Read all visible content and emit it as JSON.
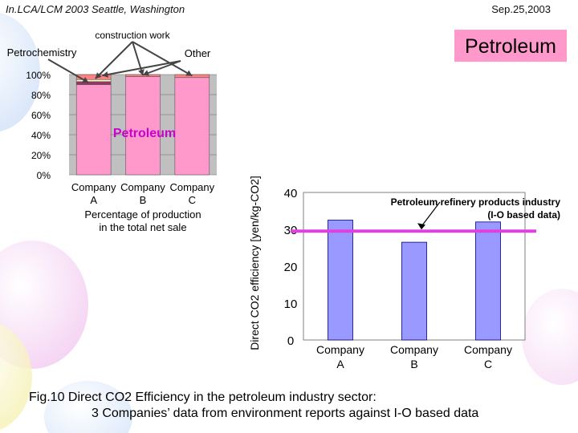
{
  "header": {
    "left": "In.LCA/LCM 2003   Seattle, Washington",
    "right": "Sep.25,2003"
  },
  "colors": {
    "petroleum_pink": "#ff99cc",
    "bar_blue": "#9999ff",
    "io_line_magenta": "#e040e0",
    "petroleum_label": "#cc00cc",
    "petrochemistry": "#993366",
    "construction": "#ffffcc",
    "other": "#ff8080",
    "plot_bg": "#c0c0c0"
  },
  "caption": {
    "line1": "Fig.10 Direct CO2 Efficiency in the petroleum industry sector:",
    "line2": "3 Companies’ data from environment reports against I-O based data"
  },
  "chart_data": [
    {
      "type": "bar",
      "stacked": true,
      "percent": true,
      "title_badge": "Petroleum",
      "inner_label": "Petroleum",
      "categories": [
        "Company A",
        "Company B",
        "Company C"
      ],
      "category_lines": [
        [
          "Company",
          "A"
        ],
        [
          "Company",
          "B"
        ],
        [
          "Company",
          "C"
        ]
      ],
      "xlabel_lines": [
        "Percentage of production",
        "in the total net sale"
      ],
      "yticks": [
        "0%",
        "20%",
        "40%",
        "60%",
        "80%",
        "100%"
      ],
      "ylim": [
        0,
        100
      ],
      "series": [
        {
          "name": "Petroleum",
          "values": [
            90,
            98,
            97
          ]
        },
        {
          "name": "Petrochemistry",
          "values": [
            3,
            0,
            0
          ]
        },
        {
          "name": "construction work",
          "values": [
            2,
            0,
            0
          ]
        },
        {
          "name": "Other",
          "values": [
            5,
            2,
            3
          ]
        }
      ],
      "annotations": [
        "construction work",
        "Petrochemistry",
        "Other"
      ]
    },
    {
      "type": "bar",
      "categories": [
        "Company A",
        "Company B",
        "Company C"
      ],
      "category_lines": [
        [
          "Company",
          "A"
        ],
        [
          "Company",
          "B"
        ],
        [
          "Company",
          "C"
        ]
      ],
      "values": [
        32.5,
        26.5,
        32
      ],
      "ylabel": "Direct CO2 efficiency [yen/kg-CO2]",
      "yticks": [
        "0",
        "10",
        "20",
        "30",
        "40"
      ],
      "ylim": [
        0,
        40
      ],
      "reference_line": {
        "value": 29.5,
        "label_lines": [
          "Petroleum refinery products industry",
          "(I-O based data)"
        ]
      }
    }
  ]
}
